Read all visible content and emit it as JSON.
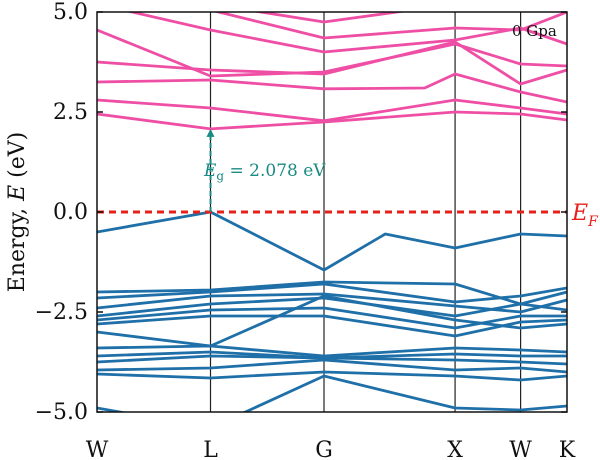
{
  "chart_data": {
    "type": "line",
    "title": "",
    "ylabel": "Energy, E (eV)",
    "ylabel_main": "Energy, ",
    "ylabel_var": "E",
    "ylabel_unit": " (eV)",
    "ylim": [
      -5.0,
      5.0
    ],
    "yticks": [
      5.0,
      2.5,
      0.0,
      -2.5,
      -5.0
    ],
    "ytick_labels": [
      "5.0",
      "2.5",
      "0.0",
      "−2.5",
      "−5.0"
    ],
    "kpoints": [
      {
        "label": "W",
        "x": 0.0
      },
      {
        "label": "L",
        "x": 0.866
      },
      {
        "label": "G",
        "x": 1.732
      },
      {
        "label": "X",
        "x": 2.732
      },
      {
        "label": "W",
        "x": 3.232
      },
      {
        "label": "K",
        "x": 3.586
      }
    ],
    "fermi_level": 0.0,
    "fermi_label_main": "E",
    "fermi_label_sub": "F",
    "pressure_label": "0 Gpa",
    "band_gap": {
      "label_main": "E",
      "label_sub": "g",
      "label_rest": " = 2.078 eV",
      "value_eV": 2.078,
      "x": 0.866,
      "from": 0.0,
      "to": 2.078
    },
    "colors": {
      "conduction": "#ee4fa5",
      "valence": "#1f6fa8",
      "fermi": "#e8201a",
      "gap": "#1a8a84",
      "kline": "#222222"
    },
    "conduction_bands": [
      {
        "x": [
          0.0,
          0.866,
          1.732,
          2.732,
          3.232,
          3.586
        ],
        "y": [
          2.45,
          2.078,
          2.25,
          2.5,
          2.45,
          2.3
        ]
      },
      {
        "x": [
          0.0,
          0.866,
          1.732,
          2.732,
          3.232,
          3.586
        ],
        "y": [
          2.8,
          2.6,
          2.28,
          2.8,
          2.6,
          2.45
        ]
      },
      {
        "x": [
          0.0,
          0.866,
          1.732,
          2.5,
          2.732,
          3.232,
          3.586
        ],
        "y": [
          3.25,
          3.3,
          3.08,
          3.1,
          3.45,
          3.0,
          2.75
        ]
      },
      {
        "x": [
          0.0,
          0.866,
          1.732,
          2.732,
          3.232,
          3.586
        ],
        "y": [
          3.75,
          3.55,
          3.45,
          4.25,
          3.2,
          3.55
        ]
      },
      {
        "x": [
          0.0,
          0.866,
          1.732,
          2.732,
          3.232,
          3.586
        ],
        "y": [
          4.55,
          3.4,
          3.5,
          4.2,
          3.7,
          3.65
        ]
      },
      {
        "x": [
          0.0,
          0.866,
          1.732,
          2.732,
          3.232,
          3.586
        ],
        "y": [
          5.2,
          4.55,
          4.0,
          4.3,
          4.6,
          4.2
        ]
      },
      {
        "x": [
          0.0,
          0.866,
          1.732,
          2.732,
          3.232,
          3.586
        ],
        "y": [
          5.6,
          5.05,
          4.35,
          4.6,
          4.55,
          5.0
        ]
      },
      {
        "x": [
          0.0,
          0.866,
          1.732,
          2.732,
          3.232,
          3.586
        ],
        "y": [
          5.8,
          5.2,
          4.75,
          5.2,
          5.3,
          5.4
        ]
      }
    ],
    "valence_bands": [
      {
        "x": [
          0.0,
          0.866,
          1.732,
          2.2,
          2.732,
          3.232,
          3.586
        ],
        "y": [
          -0.5,
          0.0,
          -1.45,
          -0.55,
          -0.9,
          -0.55,
          -0.6
        ]
      },
      {
        "x": [
          0.0,
          0.866,
          1.732,
          2.732,
          3.232,
          3.586
        ],
        "y": [
          -2.0,
          -1.95,
          -1.75,
          -1.8,
          -2.3,
          -2.0
        ]
      },
      {
        "x": [
          0.0,
          0.866,
          1.732,
          2.732,
          3.232,
          3.586
        ],
        "y": [
          -2.15,
          -2.0,
          -1.8,
          -2.25,
          -2.1,
          -1.9
        ]
      },
      {
        "x": [
          0.0,
          0.866,
          1.732,
          2.732,
          3.232,
          3.586
        ],
        "y": [
          -2.4,
          -2.1,
          -2.05,
          -2.35,
          -2.5,
          -2.2
        ]
      },
      {
        "x": [
          0.0,
          0.866,
          1.732,
          2.732,
          3.232,
          3.586
        ],
        "y": [
          -2.6,
          -2.3,
          -2.15,
          -2.6,
          -2.3,
          -2.45
        ]
      },
      {
        "x": [
          0.0,
          0.866,
          1.732,
          2.732,
          3.232,
          3.586
        ],
        "y": [
          -2.7,
          -2.45,
          -2.4,
          -2.9,
          -2.6,
          -2.6
        ]
      },
      {
        "x": [
          0.0,
          0.866,
          1.732,
          2.732,
          3.232,
          3.586
        ],
        "y": [
          -2.8,
          -2.6,
          -2.6,
          -3.1,
          -2.75,
          -2.7
        ]
      },
      {
        "x": [
          0.0,
          0.866,
          1.732,
          2.732,
          3.232,
          3.586
        ],
        "y": [
          -3.0,
          -3.35,
          -2.1,
          -2.7,
          -2.9,
          -2.8
        ]
      },
      {
        "x": [
          0.0,
          0.866,
          1.732,
          2.732,
          3.232,
          3.586
        ],
        "y": [
          -3.4,
          -3.35,
          -3.6,
          -3.4,
          -3.45,
          -3.5
        ]
      },
      {
        "x": [
          0.0,
          0.866,
          1.732,
          2.732,
          3.232,
          3.586
        ],
        "y": [
          -3.6,
          -3.5,
          -3.65,
          -3.55,
          -3.6,
          -3.6
        ]
      },
      {
        "x": [
          0.0,
          0.866,
          1.732,
          2.732,
          3.232,
          3.586
        ],
        "y": [
          -3.75,
          -3.6,
          -3.65,
          -3.7,
          -3.75,
          -3.8
        ]
      },
      {
        "x": [
          0.0,
          0.866,
          1.732,
          2.732,
          3.232,
          3.586
        ],
        "y": [
          -3.95,
          -3.9,
          -3.7,
          -3.95,
          -3.9,
          -4.0
        ]
      },
      {
        "x": [
          0.0,
          0.866,
          1.732,
          2.732,
          3.232,
          3.586
        ],
        "y": [
          -4.05,
          -4.15,
          -4.0,
          -4.1,
          -4.2,
          -4.1
        ]
      },
      {
        "x": [
          0.0,
          0.866,
          1.732,
          2.732,
          3.232,
          3.586
        ],
        "y": [
          -4.9,
          -5.4,
          -4.1,
          -4.9,
          -4.95,
          -4.85
        ]
      }
    ]
  }
}
